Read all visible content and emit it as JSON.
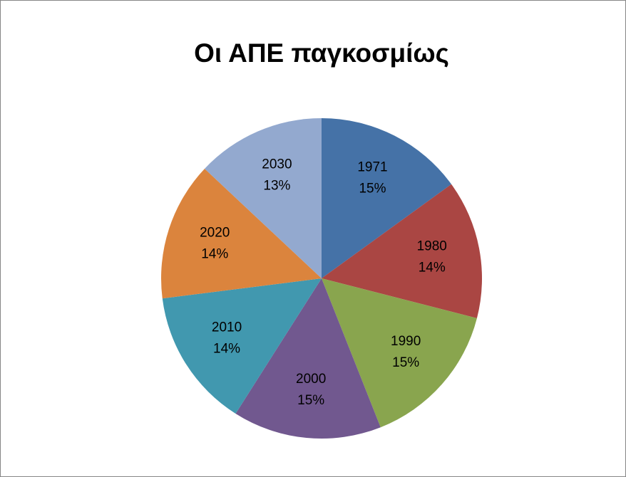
{
  "chart_data": {
    "type": "pie",
    "title": "Οι ΑΠΕ παγκοσμίως",
    "categories": [
      "1971",
      "1980",
      "1990",
      "2000",
      "2010",
      "2020",
      "2030"
    ],
    "values": [
      15,
      14,
      15,
      15,
      14,
      14,
      13
    ],
    "value_labels": [
      "15%",
      "14%",
      "15%",
      "15%",
      "14%",
      "14%",
      "13%"
    ],
    "colors": [
      "#4572A7",
      "#AA4643",
      "#89A54E",
      "#71588F",
      "#4198AF",
      "#DB843D",
      "#93A9CF"
    ]
  }
}
